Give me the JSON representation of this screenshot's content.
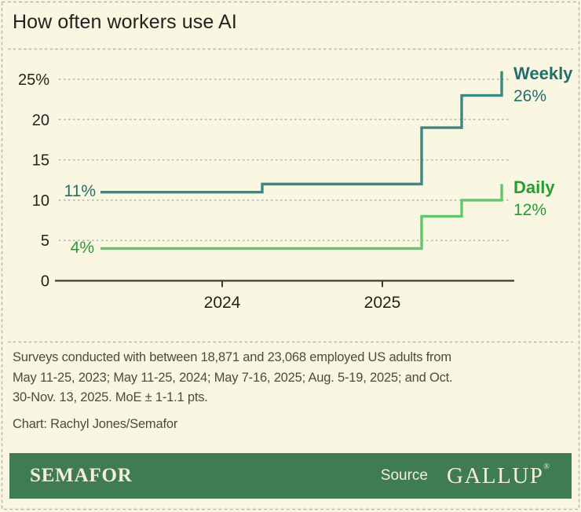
{
  "header": {
    "title": "How often workers use AI"
  },
  "chart_data": {
    "type": "line",
    "step": true,
    "title": "How often workers use AI",
    "x_tick_labels": [
      "2024",
      "2025"
    ],
    "y_tick_labels": [
      "25%",
      "20",
      "15",
      "10",
      "5",
      "0"
    ],
    "y_tick_values": [
      25,
      20,
      15,
      10,
      5,
      0
    ],
    "ylim": [
      0,
      27
    ],
    "grid": true,
    "legend_position": "end-of-line-labels",
    "survey_dates": [
      "May 11-25, 2023",
      "May 11-25, 2024",
      "May 7-16, 2025",
      "Aug. 5-19, 2025",
      "Oct. 30-Nov. 13, 2025"
    ],
    "series": [
      {
        "name": "Weekly",
        "values": [
          11,
          12,
          19,
          23,
          26
        ],
        "start_label": "11%",
        "end_label": "26%",
        "line_color": "#3a8a82",
        "label_color": "#236f6c"
      },
      {
        "name": "Daily",
        "values": [
          4,
          4,
          8,
          10,
          12
        ],
        "start_label": "4%",
        "end_label": "12%",
        "line_color": "#60c76a",
        "label_color": "#259c34"
      }
    ]
  },
  "footer": {
    "note_lines": [
      "Surveys conducted with between 18,871 and 23,068 employed US adults from",
      "May 11-25, 2023; May 11-25, 2024; May 7-16, 2025; Aug. 5-19, 2025; and Oct.",
      "30-Nov. 13, 2025. MoE ± 1-1.1 pts."
    ],
    "credit": "Chart: Rachyl Jones/Semafor"
  },
  "brandbar": {
    "logo": "SEMAFOR",
    "source_label": "Source",
    "source_logo": "GALLUP",
    "registered_mark": "®",
    "background": "#3f7c52"
  },
  "colors": {
    "background": "#f9f6e1",
    "border": "#b9b9ae",
    "title_text": "#20241e",
    "axis": "#3c3c35",
    "footer_text": "#4b4b43"
  }
}
